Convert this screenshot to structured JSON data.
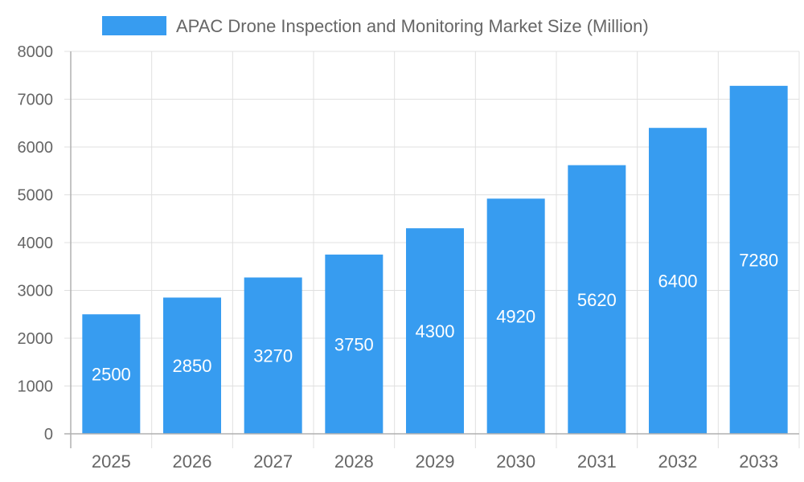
{
  "chart_data": {
    "type": "bar",
    "title": "",
    "xlabel": "",
    "ylabel": "",
    "categories": [
      "2025",
      "2026",
      "2027",
      "2028",
      "2029",
      "2030",
      "2031",
      "2032",
      "2033"
    ],
    "series": [
      {
        "name": "APAC Drone Inspection and Monitoring Market Size (Million)",
        "values": [
          2500,
          2850,
          3270,
          3750,
          4300,
          4920,
          5620,
          6400,
          7280
        ]
      }
    ],
    "ylim": [
      0,
      8000
    ],
    "yticks": [
      0,
      1000,
      2000,
      3000,
      4000,
      5000,
      6000,
      7000,
      8000
    ],
    "grid": true,
    "legend": "top-center",
    "data_labels": true,
    "colors": {
      "bar": "#379cf0",
      "label": "#ffffff",
      "text": "#666666",
      "grid": "#e0e0e0",
      "axis": "#b0b0b0"
    }
  }
}
